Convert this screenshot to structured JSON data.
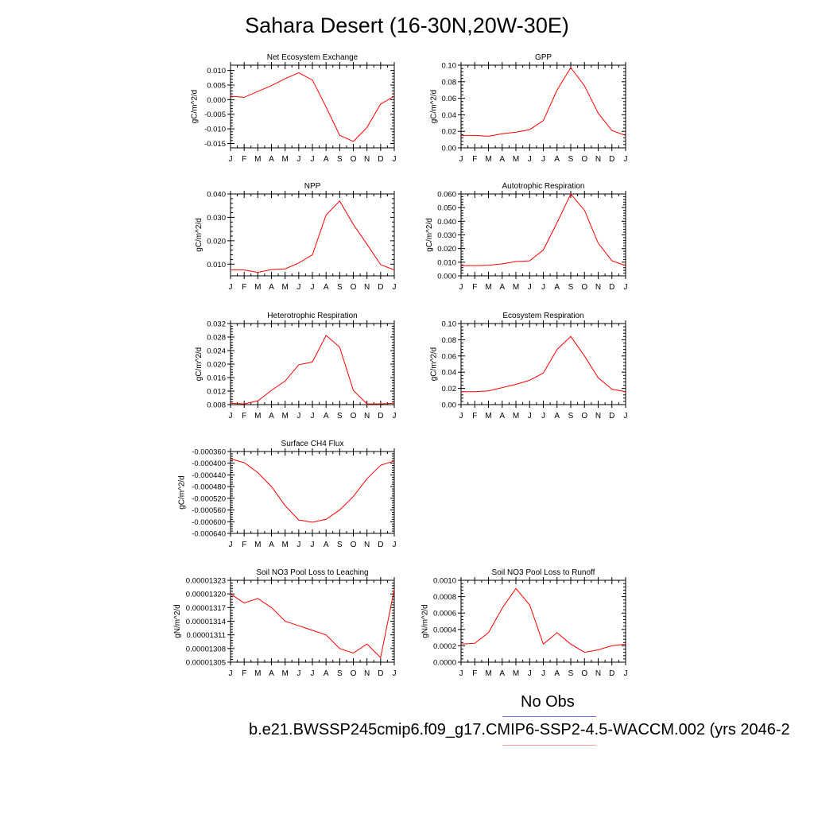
{
  "title": "Sahara Desert (16-30N,20W-30E)",
  "legend": {
    "obs_label": "No Obs",
    "model_label": "b.e21.BWSSP245cmip6.f09_g17.CMIP6-SSP2-4.5-WACCM.002 (yrs 2046-2",
    "obs_color": "#6f6fe8",
    "model_color": "#f2a0a0"
  },
  "colors": {
    "series": "#ff0000",
    "axis": "#000000"
  },
  "chart_data": [
    {
      "type": "line",
      "title": "Net Ecosystem Exchange",
      "ylabel": "gC/m^2/d",
      "x": [
        "J",
        "F",
        "M",
        "A",
        "M",
        "J",
        "J",
        "A",
        "S",
        "O",
        "N",
        "D",
        "J"
      ],
      "ylim": [
        -0.0165,
        0.0118
      ],
      "yticks": [
        -0.015,
        -0.01,
        -0.005,
        0.0,
        0.005,
        0.01
      ],
      "yticklabels": [
        "-0.015",
        "-0.010",
        "-0.005",
        "0.000",
        "0.005",
        "0.010"
      ],
      "values": [
        0.0012,
        0.0008,
        0.0028,
        0.0048,
        0.0072,
        0.0092,
        0.0067,
        -0.0025,
        -0.0122,
        -0.0143,
        -0.0095,
        -0.0015,
        0.0012
      ]
    },
    {
      "type": "line",
      "title": "GPP",
      "ylabel": "gC/m^2/d",
      "x": [
        "J",
        "F",
        "M",
        "A",
        "M",
        "J",
        "J",
        "A",
        "S",
        "O",
        "N",
        "D",
        "J"
      ],
      "ylim": [
        0.0,
        0.1
      ],
      "yticks": [
        0.0,
        0.02,
        0.04,
        0.06,
        0.08,
        0.1
      ],
      "yticklabels": [
        "0.00",
        "0.02",
        "0.04",
        "0.06",
        "0.08",
        "0.10"
      ],
      "values": [
        0.015,
        0.015,
        0.014,
        0.017,
        0.019,
        0.022,
        0.033,
        0.07,
        0.097,
        0.075,
        0.042,
        0.021,
        0.015
      ]
    },
    {
      "type": "line",
      "title": "NPP",
      "ylabel": "gC/m^2/d",
      "x": [
        "J",
        "F",
        "M",
        "A",
        "M",
        "J",
        "J",
        "A",
        "S",
        "O",
        "N",
        "D",
        "J"
      ],
      "ylim": [
        0.005,
        0.04
      ],
      "yticks": [
        0.01,
        0.02,
        0.03,
        0.04
      ],
      "yticklabels": [
        "0.010",
        "0.020",
        "0.030",
        "0.040"
      ],
      "values": [
        0.0075,
        0.0075,
        0.0065,
        0.0077,
        0.008,
        0.0105,
        0.014,
        0.031,
        0.037,
        0.027,
        0.0185,
        0.0098,
        0.0075
      ]
    },
    {
      "type": "line",
      "title": "Autotrophic Respiration",
      "ylabel": "gC/m^2/d",
      "x": [
        "J",
        "F",
        "M",
        "A",
        "M",
        "J",
        "J",
        "A",
        "S",
        "O",
        "N",
        "D",
        "J"
      ],
      "ylim": [
        0.0,
        0.06
      ],
      "yticks": [
        0.0,
        0.01,
        0.02,
        0.03,
        0.04,
        0.05,
        0.06
      ],
      "yticklabels": [
        "0.000",
        "0.010",
        "0.020",
        "0.030",
        "0.040",
        "0.050",
        "0.060"
      ],
      "values": [
        0.0075,
        0.0075,
        0.0077,
        0.0088,
        0.0105,
        0.011,
        0.019,
        0.039,
        0.06,
        0.048,
        0.024,
        0.011,
        0.0075
      ]
    },
    {
      "type": "line",
      "title": "Heterotrophic Respiration",
      "ylabel": "gC/m^2/d",
      "x": [
        "J",
        "F",
        "M",
        "A",
        "M",
        "J",
        "J",
        "A",
        "S",
        "O",
        "N",
        "D",
        "J"
      ],
      "ylim": [
        0.008,
        0.032
      ],
      "yticks": [
        0.008,
        0.012,
        0.016,
        0.02,
        0.024,
        0.028,
        0.032
      ],
      "yticklabels": [
        "0.008",
        "0.012",
        "0.016",
        "0.020",
        "0.024",
        "0.028",
        "0.032"
      ],
      "values": [
        0.0084,
        0.0082,
        0.0091,
        0.0122,
        0.015,
        0.0198,
        0.0206,
        0.0285,
        0.025,
        0.0122,
        0.0082,
        0.0082,
        0.0084
      ]
    },
    {
      "type": "line",
      "title": "Ecosystem Respiration",
      "ylabel": "gC/m^2/d",
      "x": [
        "J",
        "F",
        "M",
        "A",
        "M",
        "J",
        "J",
        "A",
        "S",
        "O",
        "N",
        "D",
        "J"
      ],
      "ylim": [
        0.0,
        0.1
      ],
      "yticks": [
        0.0,
        0.02,
        0.04,
        0.06,
        0.08,
        0.1
      ],
      "yticklabels": [
        "0.00",
        "0.02",
        "0.04",
        "0.06",
        "0.08",
        "0.10"
      ],
      "values": [
        0.016,
        0.016,
        0.017,
        0.021,
        0.025,
        0.03,
        0.039,
        0.068,
        0.084,
        0.06,
        0.033,
        0.019,
        0.016
      ]
    },
    {
      "type": "line",
      "title": "Surface CH4 Flux",
      "ylabel": "gC/m^2/d",
      "x": [
        "J",
        "F",
        "M",
        "A",
        "M",
        "J",
        "J",
        "A",
        "S",
        "O",
        "N",
        "D",
        "J"
      ],
      "ylim": [
        -0.00064,
        -0.00036
      ],
      "yticks": [
        -0.00064,
        -0.0006,
        -0.00056,
        -0.00052,
        -0.00048,
        -0.00044,
        -0.0004,
        -0.00036
      ],
      "yticklabels": [
        "-0.000640",
        "-0.000600",
        "-0.000560",
        "-0.000520",
        "-0.000480",
        "-0.000440",
        "-0.000400",
        "-0.000360"
      ],
      "values": [
        -0.000385,
        -0.000398,
        -0.000432,
        -0.00048,
        -0.000545,
        -0.000594,
        -0.000602,
        -0.000592,
        -0.00056,
        -0.000514,
        -0.000453,
        -0.000407,
        -0.000392
      ]
    },
    {
      "type": "line",
      "title": "Soil NO3 Pool Loss to Leaching",
      "ylabel": "gN/m^2/d",
      "x": [
        "J",
        "F",
        "M",
        "A",
        "M",
        "J",
        "J",
        "A",
        "S",
        "O",
        "N",
        "D",
        "J"
      ],
      "ylim": [
        1.305e-05,
        1.323e-05
      ],
      "yticks": [
        1.305e-05,
        1.308e-05,
        1.311e-05,
        1.314e-05,
        1.317e-05,
        1.32e-05,
        1.323e-05
      ],
      "yticklabels": [
        "0.00001305",
        "0.00001308",
        "0.00001311",
        "0.00001314",
        "0.00001317",
        "0.00001320",
        "0.00001323"
      ],
      "values": [
        1.32e-05,
        1.318e-05,
        1.319e-05,
        1.317e-05,
        1.314e-05,
        1.313e-05,
        1.312e-05,
        1.311e-05,
        1.308e-05,
        1.307e-05,
        1.309e-05,
        1.306e-05,
        1.321e-05
      ]
    },
    {
      "type": "line",
      "title": "Soil NO3 Pool Loss to Runoff",
      "ylabel": "gN/m^2/d",
      "x": [
        "J",
        "F",
        "M",
        "A",
        "M",
        "J",
        "J",
        "A",
        "S",
        "O",
        "N",
        "D",
        "J"
      ],
      "ylim": [
        0.0,
        0.001
      ],
      "yticks": [
        0.0,
        0.0002,
        0.0004,
        0.0006,
        0.0008,
        0.001
      ],
      "yticklabels": [
        "0.0000",
        "0.0002",
        "0.0004",
        "0.0006",
        "0.0008",
        "0.0010"
      ],
      "values": [
        0.00022,
        0.00023,
        0.00036,
        0.00066,
        0.0009,
        0.0007,
        0.00022,
        0.00036,
        0.00022,
        0.00012,
        0.00015,
        0.0002,
        0.00022
      ]
    }
  ]
}
